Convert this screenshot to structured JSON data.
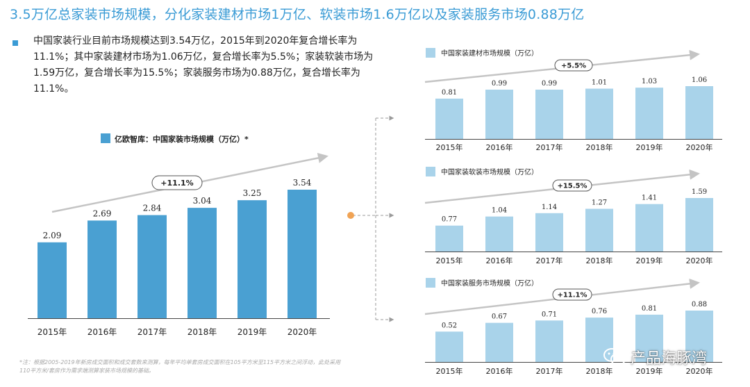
{
  "title": "3.5万亿总家装市场规模，分化家装建材市场1万亿、软装市场1.6万亿以及家装服务市场0.88万亿",
  "bullet": "中国家装行业目前市场规模达到3.54万亿，2015年到2020年复合增长率为11.1%；其中家装建材市场为1.06万亿，复合增长率为5.5%；家装软装市场为1.59万亿，复合增长率为15.5%；家装服务市场为0.88万亿，复合增长率为11.1%。",
  "footnote": "*注：根据2005-2019年新房成交面积和成交套数来测算，每年平均单套房成交面积在105平方米至115平方米之间浮动，此处采用110平方米/套房作为需求端测算家装市场规模的基础。",
  "watermark": "产品海豚湾",
  "colors": {
    "main_bar": "#4aa0d2",
    "small_bar": "#a9d3ea",
    "title": "#3a9bd5",
    "arrow": "#c4c4c4",
    "dot": "#f0a355"
  },
  "chart_data": [
    {
      "id": "main",
      "type": "bar",
      "title": "亿欧智库：中国家装市场规模（万亿）*",
      "categories": [
        "2015年",
        "2016年",
        "2017年",
        "2018年",
        "2019年",
        "2020年"
      ],
      "values": [
        2.09,
        2.69,
        2.84,
        3.04,
        3.25,
        3.54
      ],
      "value_labels": [
        "2.09",
        "2.69",
        "2.84",
        "3.04",
        "3.25",
        "3.54"
      ],
      "growth": "+11.1%",
      "ylim": [
        0,
        3.54
      ]
    },
    {
      "id": "materials",
      "type": "bar",
      "title": "中国家装建材市场规模（万亿）",
      "categories": [
        "2015年",
        "2016年",
        "2017年",
        "2018年",
        "2019年",
        "2020年"
      ],
      "values": [
        0.81,
        0.99,
        0.99,
        1.01,
        1.03,
        1.06
      ],
      "value_labels": [
        "0.81",
        "0.99",
        "0.99",
        "1.01",
        "1.03",
        "1.06"
      ],
      "growth": "+5.5%",
      "ylim": [
        0,
        1.06
      ]
    },
    {
      "id": "soft",
      "type": "bar",
      "title": "中国家装软装市场规模（万亿）",
      "categories": [
        "2015年",
        "2016年",
        "2017年",
        "2018年",
        "2019年",
        "2020年"
      ],
      "values": [
        0.77,
        1.04,
        1.14,
        1.27,
        1.41,
        1.59
      ],
      "value_labels": [
        "0.77",
        "1.04",
        "1.14",
        "1.27",
        "1.41",
        "1.59"
      ],
      "growth": "+15.5%",
      "ylim": [
        0,
        1.59
      ]
    },
    {
      "id": "service",
      "type": "bar",
      "title": "中国家装服务市场规模（万亿）",
      "categories": [
        "2015年",
        "2016年",
        "2017年",
        "2018年",
        "2019年",
        "2020年"
      ],
      "values": [
        0.52,
        0.67,
        0.71,
        0.76,
        0.81,
        0.88
      ],
      "value_labels": [
        "0.52",
        "0.67",
        "0.71",
        "0.76",
        "0.81",
        "0.88"
      ],
      "growth": "+11.1%",
      "ylim": [
        0,
        0.88
      ]
    }
  ]
}
